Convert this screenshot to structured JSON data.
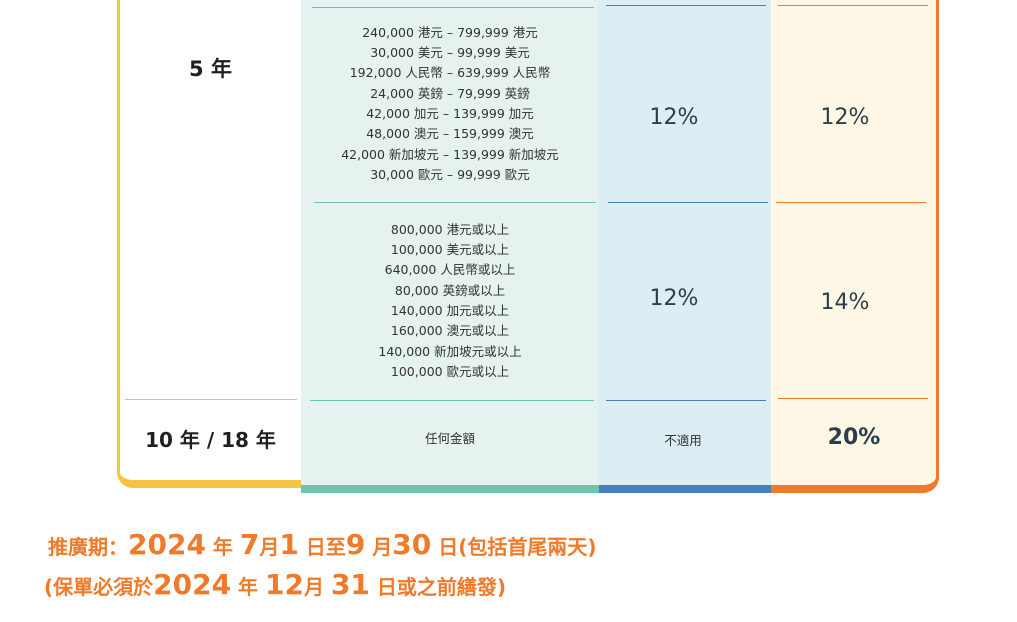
{
  "table": {
    "row_5y": {
      "year": "5 年",
      "tier1": {
        "amounts": [
          "240,000 港元 – 799,999 港元",
          "30,000 美元 – 99,999 美元",
          "192,000 人民幣 – 639,999 人民幣",
          "24,000 英鎊 – 79,999 英鎊",
          "42,000 加元 – 139,999 加元",
          "48,000 澳元 – 159,999 澳元",
          "42,000 新加坡元 – 139,999 新加坡元",
          "30,000 歐元 – 99,999 歐元"
        ],
        "rate_a": "12%",
        "rate_b": "12%"
      },
      "tier2": {
        "amounts": [
          "800,000 港元或以上",
          "100,000 美元或以上",
          "640,000 人民幣或以上",
          "80,000 英鎊或以上",
          "140,000 加元或以上",
          "160,000 澳元或以上",
          "140,000 新加坡元或以上",
          "100,000 歐元或以上"
        ],
        "rate_a": "12%",
        "rate_b": "14%"
      }
    },
    "row_10y": {
      "year": "10 年 / 18 年",
      "amount": "任何金額",
      "rate_a": "不適用",
      "rate_b": "20%"
    }
  },
  "promo": {
    "line1": {
      "prefix": "推廣期：",
      "year": "2024",
      "nian": " 年 ",
      "m1": "7",
      "yue1": "月",
      "d1": "1",
      "ri_zhi": " 日至",
      "m2": "9",
      "yue2": " 月",
      "d2": "30",
      "suffix": " 日(包括首尾兩天)"
    },
    "line2": {
      "prefix": "(保單必須於",
      "year": "2024",
      "nian": " 年 ",
      "m": "12",
      "yue": "月 ",
      "d": "31",
      "suffix": " 日或之前繕發)"
    }
  }
}
